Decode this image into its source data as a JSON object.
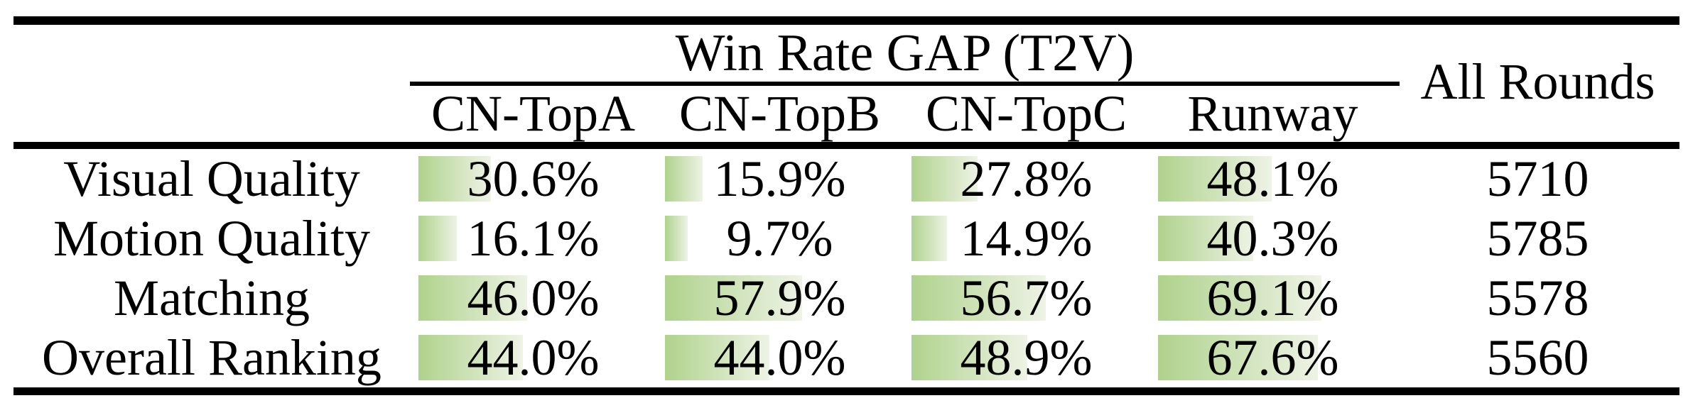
{
  "table": {
    "group_header": "Win Rate GAP (T2V)",
    "all_rounds_header": "All Rounds",
    "columns": [
      "CN-TopA",
      "CN-TopB",
      "CN-TopC",
      "Runway"
    ],
    "rows": [
      {
        "label": "Visual Quality",
        "cells": [
          {
            "display": "30.6%",
            "value": 30.6
          },
          {
            "display": "15.9%",
            "value": 15.9
          },
          {
            "display": "27.8%",
            "value": 27.8
          },
          {
            "display": "48.1%",
            "value": 48.1
          }
        ],
        "all_rounds": "5710"
      },
      {
        "label": "Motion Quality",
        "cells": [
          {
            "display": "16.1%",
            "value": 16.1
          },
          {
            "display": "9.7%",
            "value": 9.7
          },
          {
            "display": "14.9%",
            "value": 14.9
          },
          {
            "display": "40.3%",
            "value": 40.3
          }
        ],
        "all_rounds": "5785"
      },
      {
        "label": "Matching",
        "cells": [
          {
            "display": "46.0%",
            "value": 46.0
          },
          {
            "display": "57.9%",
            "value": 57.9
          },
          {
            "display": "56.7%",
            "value": 56.7
          },
          {
            "display": "69.1%",
            "value": 69.1
          }
        ],
        "all_rounds": "5578"
      },
      {
        "label": "Overall Ranking",
        "cells": [
          {
            "display": "44.0%",
            "value": 44.0
          },
          {
            "display": "44.0%",
            "value": 44.0
          },
          {
            "display": "48.9%",
            "value": 48.9
          },
          {
            "display": "67.6%",
            "value": 67.6
          }
        ],
        "all_rounds": "5560"
      }
    ]
  },
  "colors": {
    "bar_gradient_start": "#afd28c",
    "bar_gradient_end": "#eef3e6",
    "rule": "#000000",
    "text": "#000000"
  },
  "chart_data": {
    "type": "table",
    "title": "Win Rate GAP (T2V)",
    "row_labels": [
      "Visual Quality",
      "Motion Quality",
      "Matching",
      "Overall Ranking"
    ],
    "columns": [
      "CN-TopA",
      "CN-TopB",
      "CN-TopC",
      "Runway",
      "All Rounds"
    ],
    "rows": [
      [
        30.6,
        15.9,
        27.8,
        48.1,
        5710
      ],
      [
        16.1,
        9.7,
        14.9,
        40.3,
        5785
      ],
      [
        46.0,
        57.9,
        56.7,
        69.1,
        5578
      ],
      [
        44.0,
        44.0,
        48.9,
        67.6,
        5560
      ]
    ]
  }
}
